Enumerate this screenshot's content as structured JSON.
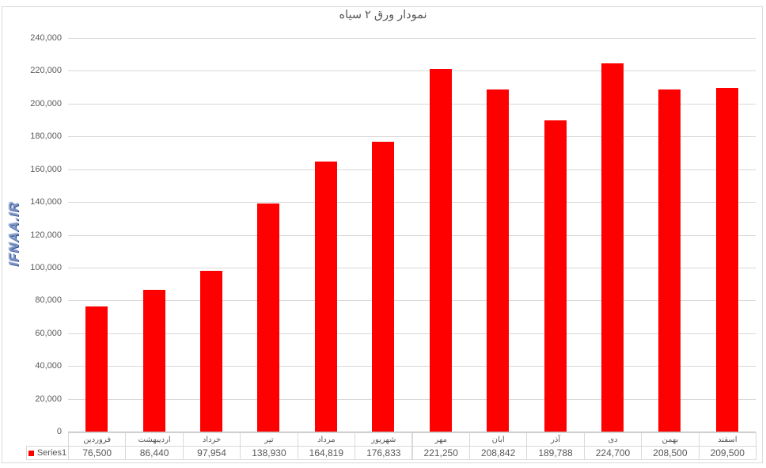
{
  "title": "نمودار ورق ۲ سیاه",
  "watermark": "IFNAA.IR",
  "legend": {
    "label": "Series1",
    "marker_color": "#ff0000"
  },
  "colors": {
    "bar": "#ff0000",
    "gridline": "#d9d9d9",
    "axis": "#bfbfbf",
    "text": "#595959",
    "watermark_blue": "#30508f",
    "table_border": "#d9d9d9"
  },
  "chart_data": {
    "type": "bar",
    "title": "نمودار ورق ۲ سیاه",
    "categories": [
      "فروردین",
      "اردیبهشت",
      "خرداد",
      "تیر",
      "مرداد",
      "شهریور",
      "مهر",
      "ابان",
      "آذر",
      "دی",
      "بهمن",
      "اسفند"
    ],
    "values": [
      76500,
      86440,
      97954,
      138930,
      164819,
      176833,
      221250,
      208842,
      189788,
      224700,
      208500,
      209500
    ],
    "value_labels": [
      "76,500",
      "86,440",
      "97,954",
      "138,930",
      "164,819",
      "176,833",
      "221,250",
      "208,842",
      "189,788",
      "224,700",
      "208,500",
      "209,500"
    ],
    "series_name": "Series1",
    "xlabel": "",
    "ylabel": "",
    "ylim": [
      0,
      240000
    ],
    "ytick_step": 20000,
    "ytick_labels": [
      "0",
      "20,000",
      "40,000",
      "60,000",
      "80,000",
      "100,000",
      "120,000",
      "140,000",
      "160,000",
      "180,000",
      "200,000",
      "220,000",
      "240,000"
    ],
    "grid": true,
    "legend_position": "bottom-left-data-table",
    "bar_color": "#ff0000"
  }
}
